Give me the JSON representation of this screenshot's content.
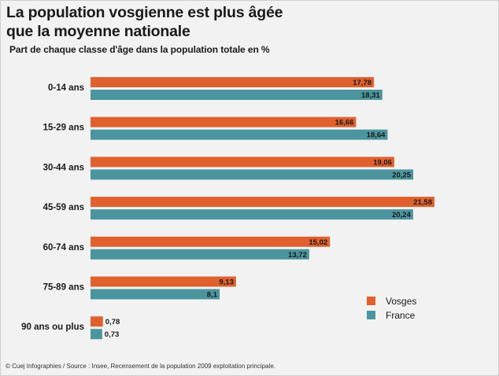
{
  "title_line1": "La population vosgienne est plus âgée",
  "title_line2": "que la moyenne nationale",
  "subtitle": "Part de chaque classe d'âge dans la population totale en %",
  "source": "© Cuej Infographies / Source : Insee, Recensement de la population 2009 exploitation principale.",
  "chart_data": {
    "type": "bar",
    "orientation": "horizontal",
    "title": "La population vosgienne est plus âgée que la moyenne nationale",
    "subtitle": "Part de chaque classe d'âge dans la population totale en %",
    "categories": [
      "0-14 ans",
      "15-29 ans",
      "30-44 ans",
      "45-59 ans",
      "60-74 ans",
      "75-89 ans",
      "90 ans ou plus"
    ],
    "series": [
      {
        "name": "Vosges",
        "color": "#e0612e",
        "values": [
          17.78,
          16.66,
          19.06,
          21.58,
          15.02,
          9.13,
          0.78
        ],
        "labels": [
          "17,78",
          "16,66",
          "19,06",
          "21,58",
          "15,02",
          "9,13",
          "0,78"
        ]
      },
      {
        "name": "France",
        "color": "#4b959e",
        "values": [
          18.31,
          18.64,
          20.25,
          20.24,
          13.72,
          8.1,
          0.73
        ],
        "labels": [
          "18,31",
          "18,64",
          "20,25",
          "20,24",
          "13,72",
          "8,1",
          "0,73"
        ]
      }
    ],
    "xlim": [
      0,
      22
    ],
    "grid": false,
    "legend": "bottom-right"
  }
}
